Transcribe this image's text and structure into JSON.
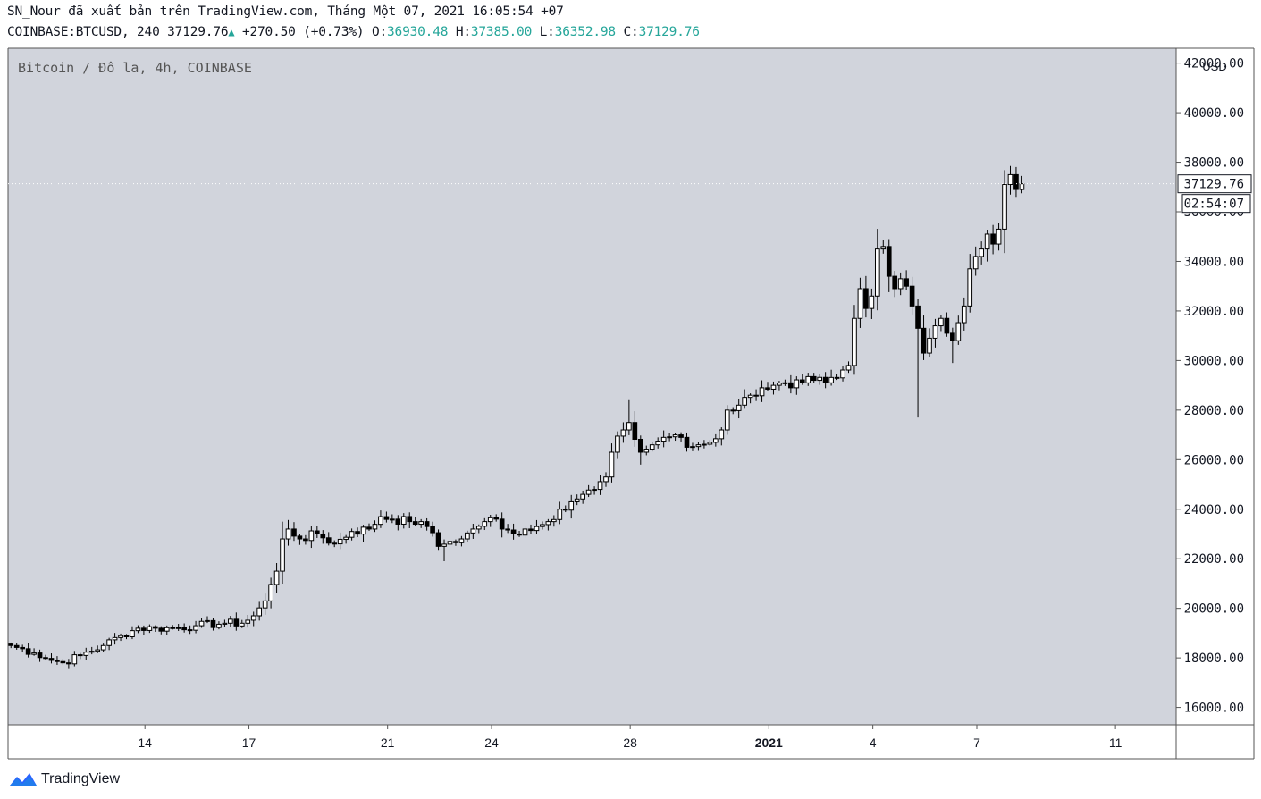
{
  "header": {
    "published_line": "SN_Nour đã xuất bản trên TradingView.com, Tháng Một 07, 2021 16:05:54 +07",
    "symbol": "COINBASE:BTCUSD, 240",
    "last_price": "37129.76",
    "change": "+270.50 (+0.73%)",
    "open_label": "O:",
    "open": "36930.48",
    "high_label": "H:",
    "high": "37385.00",
    "low_label": "L:",
    "low": "36352.98",
    "close_label": "C:",
    "close": "37129.76"
  },
  "chart_title": "Bitcoin / Đô la, 4h, COINBASE",
  "footer": {
    "brand": "TradingView"
  },
  "colors": {
    "pane_bg": "#d1d4dc",
    "up_body": "#ffffff",
    "down_body": "#000000",
    "change_up": "#26a69a"
  },
  "chart_data": {
    "type": "candlestick",
    "currency": "USD",
    "y_ticks": [
      "42000.00",
      "40000.00",
      "38000.00",
      "36000.00",
      "34000.00",
      "32000.00",
      "30000.00",
      "28000.00",
      "26000.00",
      "24000.00",
      "22000.00",
      "20000.00",
      "18000.00",
      "16000.00"
    ],
    "ylim": [
      15300,
      42600
    ],
    "x_ticks": [
      {
        "label": "14",
        "day": 14
      },
      {
        "label": "17",
        "day": 17
      },
      {
        "label": "21",
        "day": 21
      },
      {
        "label": "24",
        "day": 24
      },
      {
        "label": "28",
        "day": 28
      },
      {
        "label": "2021",
        "day": 32
      },
      {
        "label": "4",
        "day": 35
      },
      {
        "label": "7",
        "day": 38
      },
      {
        "label": "11",
        "day": 42
      }
    ],
    "x_start_day": 10.05,
    "x_end_day": 43.75,
    "candle_hours": 4,
    "last_price_label": "37129.76",
    "countdown_label": "02:54:07",
    "anchors": [
      [
        0,
        18500
      ],
      [
        4,
        18200
      ],
      [
        7,
        17900
      ],
      [
        9,
        17800
      ],
      [
        12,
        18100
      ],
      [
        16,
        18500
      ],
      [
        19,
        18900
      ],
      [
        22,
        19200
      ],
      [
        25,
        19200
      ],
      [
        28,
        19200
      ],
      [
        32,
        19300
      ],
      [
        37,
        19400
      ],
      [
        40,
        19400
      ],
      [
        42,
        19700
      ],
      [
        44,
        20300
      ],
      [
        46,
        21500
      ],
      [
        47,
        22800
      ],
      [
        48,
        23200
      ],
      [
        50,
        22800
      ],
      [
        53,
        23000
      ],
      [
        56,
        22600
      ],
      [
        59,
        23100
      ],
      [
        62,
        23200
      ],
      [
        64,
        23700
      ],
      [
        66,
        23600
      ],
      [
        69,
        23500
      ],
      [
        71,
        23500
      ],
      [
        72,
        23300
      ],
      [
        74,
        22500
      ],
      [
        76,
        22700
      ],
      [
        78,
        22800
      ],
      [
        80,
        23200
      ],
      [
        82,
        23500
      ],
      [
        84,
        23600
      ],
      [
        85,
        23200
      ],
      [
        87,
        23000
      ],
      [
        89,
        23200
      ],
      [
        91,
        23300
      ],
      [
        93,
        23500
      ],
      [
        95,
        24000
      ],
      [
        97,
        24300
      ],
      [
        99,
        24600
      ],
      [
        101,
        24800
      ],
      [
        103,
        25300
      ],
      [
        104,
        26300
      ],
      [
        106,
        27200
      ],
      [
        107,
        27500
      ],
      [
        109,
        26300
      ],
      [
        111,
        26600
      ],
      [
        113,
        26900
      ],
      [
        115,
        27000
      ],
      [
        117,
        26500
      ],
      [
        119,
        26600
      ],
      [
        121,
        26700
      ],
      [
        123,
        27200
      ],
      [
        124,
        28000
      ],
      [
        126,
        28200
      ],
      [
        128,
        28600
      ],
      [
        130,
        28900
      ],
      [
        132,
        29000
      ],
      [
        135,
        28900
      ],
      [
        137,
        29100
      ],
      [
        139,
        29200
      ],
      [
        141,
        29100
      ],
      [
        143,
        29300
      ],
      [
        145,
        29800
      ],
      [
        146,
        31700
      ],
      [
        147,
        32900
      ],
      [
        148,
        32100
      ],
      [
        149,
        32600
      ],
      [
        150,
        34500
      ],
      [
        151,
        34600
      ],
      [
        152,
        33400
      ],
      [
        153,
        32900
      ],
      [
        154,
        33300
      ],
      [
        155,
        33000
      ],
      [
        156,
        32200
      ],
      [
        157,
        31300
      ],
      [
        158,
        30300
      ],
      [
        159,
        30900
      ],
      [
        160,
        31400
      ],
      [
        161,
        31700
      ],
      [
        162,
        31100
      ],
      [
        163,
        30800
      ],
      [
        165,
        32200
      ],
      [
        166,
        33700
      ],
      [
        167,
        34200
      ],
      [
        168,
        34500
      ],
      [
        169,
        35100
      ],
      [
        170,
        34700
      ],
      [
        171,
        35300
      ],
      [
        172,
        37100
      ],
      [
        173,
        37500
      ],
      [
        174,
        36900
      ],
      [
        175,
        37130
      ]
    ],
    "spikes": [
      {
        "i": 157,
        "low": 27700
      },
      {
        "i": 163,
        "low": 29900
      },
      {
        "i": 152,
        "high": 34900
      },
      {
        "i": 75,
        "low": 21900
      },
      {
        "i": 109,
        "low": 25800
      },
      {
        "i": 107,
        "high": 28400
      }
    ]
  }
}
